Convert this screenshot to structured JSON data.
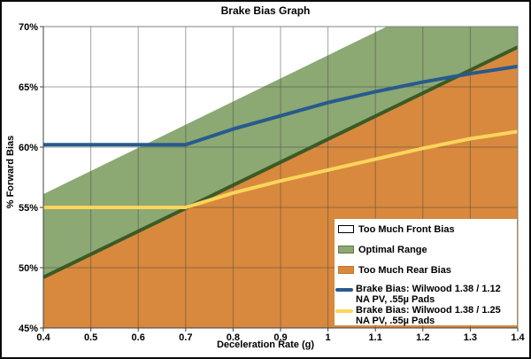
{
  "chart": {
    "title": "Brake Bias Graph",
    "xlabel": "Deceleration Rate (g)",
    "ylabel": "% Forward Bias"
  },
  "chart_data": {
    "type": "line",
    "title": "Brake Bias Graph",
    "xlabel": "Deceleration Rate (g)",
    "ylabel": "% Forward Bias",
    "xlim": [
      0.4,
      1.4
    ],
    "ylim": [
      45,
      70
    ],
    "x_ticks": [
      0.4,
      0.5,
      0.6,
      0.7,
      0.8,
      0.9,
      1.0,
      1.1,
      1.2,
      1.3,
      1.4
    ],
    "x_tick_labels": [
      "0.4",
      "0.5",
      "0.6",
      "0.7",
      "0.8",
      "0.9",
      "1",
      "1.1",
      "1.2",
      "1.3",
      "1.4"
    ],
    "y_ticks": [
      45,
      50,
      55,
      60,
      65,
      70
    ],
    "y_tick_labels": [
      "45%",
      "50%",
      "55%",
      "60%",
      "65%",
      "70%"
    ],
    "grid": true,
    "legend_position": "inside-bottom-right",
    "regions": [
      {
        "name": "Too Much Front Bias",
        "where": "above optimal band top edge",
        "color": "#FFFFFF"
      },
      {
        "name": "Optimal Range",
        "where": "between band edges",
        "color": "#8CA873",
        "edge_color": "#3A5B25"
      },
      {
        "name": "Too Much Rear Bias",
        "where": "below optimal band bottom edge",
        "color": "#D8893E"
      }
    ],
    "bands": {
      "optimal": {
        "top": {
          "x": [
            0.4,
            1.4
          ],
          "y": [
            56.1,
            75.3
          ]
        },
        "bottom": {
          "x": [
            0.4,
            1.4
          ],
          "y": [
            49.2,
            68.3
          ]
        }
      }
    },
    "x": [
      0.4,
      0.5,
      0.6,
      0.7,
      0.8,
      0.9,
      1.0,
      1.1,
      1.2,
      1.3,
      1.4
    ],
    "series": [
      {
        "name": "Brake Bias: Wilwood 1.38 / 1.12 NA PV, .55µ Pads",
        "color": "#275A8E",
        "values": [
          60.2,
          60.2,
          60.2,
          60.2,
          61.5,
          62.6,
          63.7,
          64.6,
          65.4,
          66.1,
          66.7
        ]
      },
      {
        "name": "Brake Bias: Wilwood 1.38 / 1.25 NA PV, .55µ Pads",
        "color": "#FBD55A",
        "values": [
          55.0,
          55.0,
          55.0,
          55.0,
          56.2,
          57.2,
          58.1,
          59.0,
          59.9,
          60.7,
          61.3
        ]
      }
    ]
  },
  "legend": {
    "items": [
      {
        "label": "Too Much Front Bias",
        "swatch": "area",
        "color": "#FFFFFF",
        "border_color": "#000000"
      },
      {
        "label": "Optimal Range",
        "swatch": "area",
        "color": "#8CA873",
        "border_color": "#5F7B42"
      },
      {
        "label": "Too Much Rear Bias",
        "swatch": "area",
        "color": "#D8893E",
        "border_color": "#BF7631"
      },
      {
        "label_line1": "Brake Bias: Wilwood 1.38 / 1.12",
        "label_line2": "NA PV, .55µ Pads",
        "swatch": "line",
        "color": "#275A8E"
      },
      {
        "label_line1": "Brake Bias: Wilwood 1.38 / 1.25",
        "label_line2": "NA PV, .55µ Pads",
        "swatch": "line",
        "color": "#FBD55A"
      }
    ]
  },
  "colors": {
    "background": "#FFFFFF",
    "gridline": "rgba(70,70,70,0.5)",
    "frame": "#808080",
    "axis": "#404040",
    "optimal_green": "#8CA873",
    "optimal_edge_green": "#3A5B25",
    "rear_bias_orange": "#D8893E",
    "front_bias_white": "#FFFFFF",
    "series_blue": "#275A8E",
    "series_yellow": "#FBD55A"
  }
}
